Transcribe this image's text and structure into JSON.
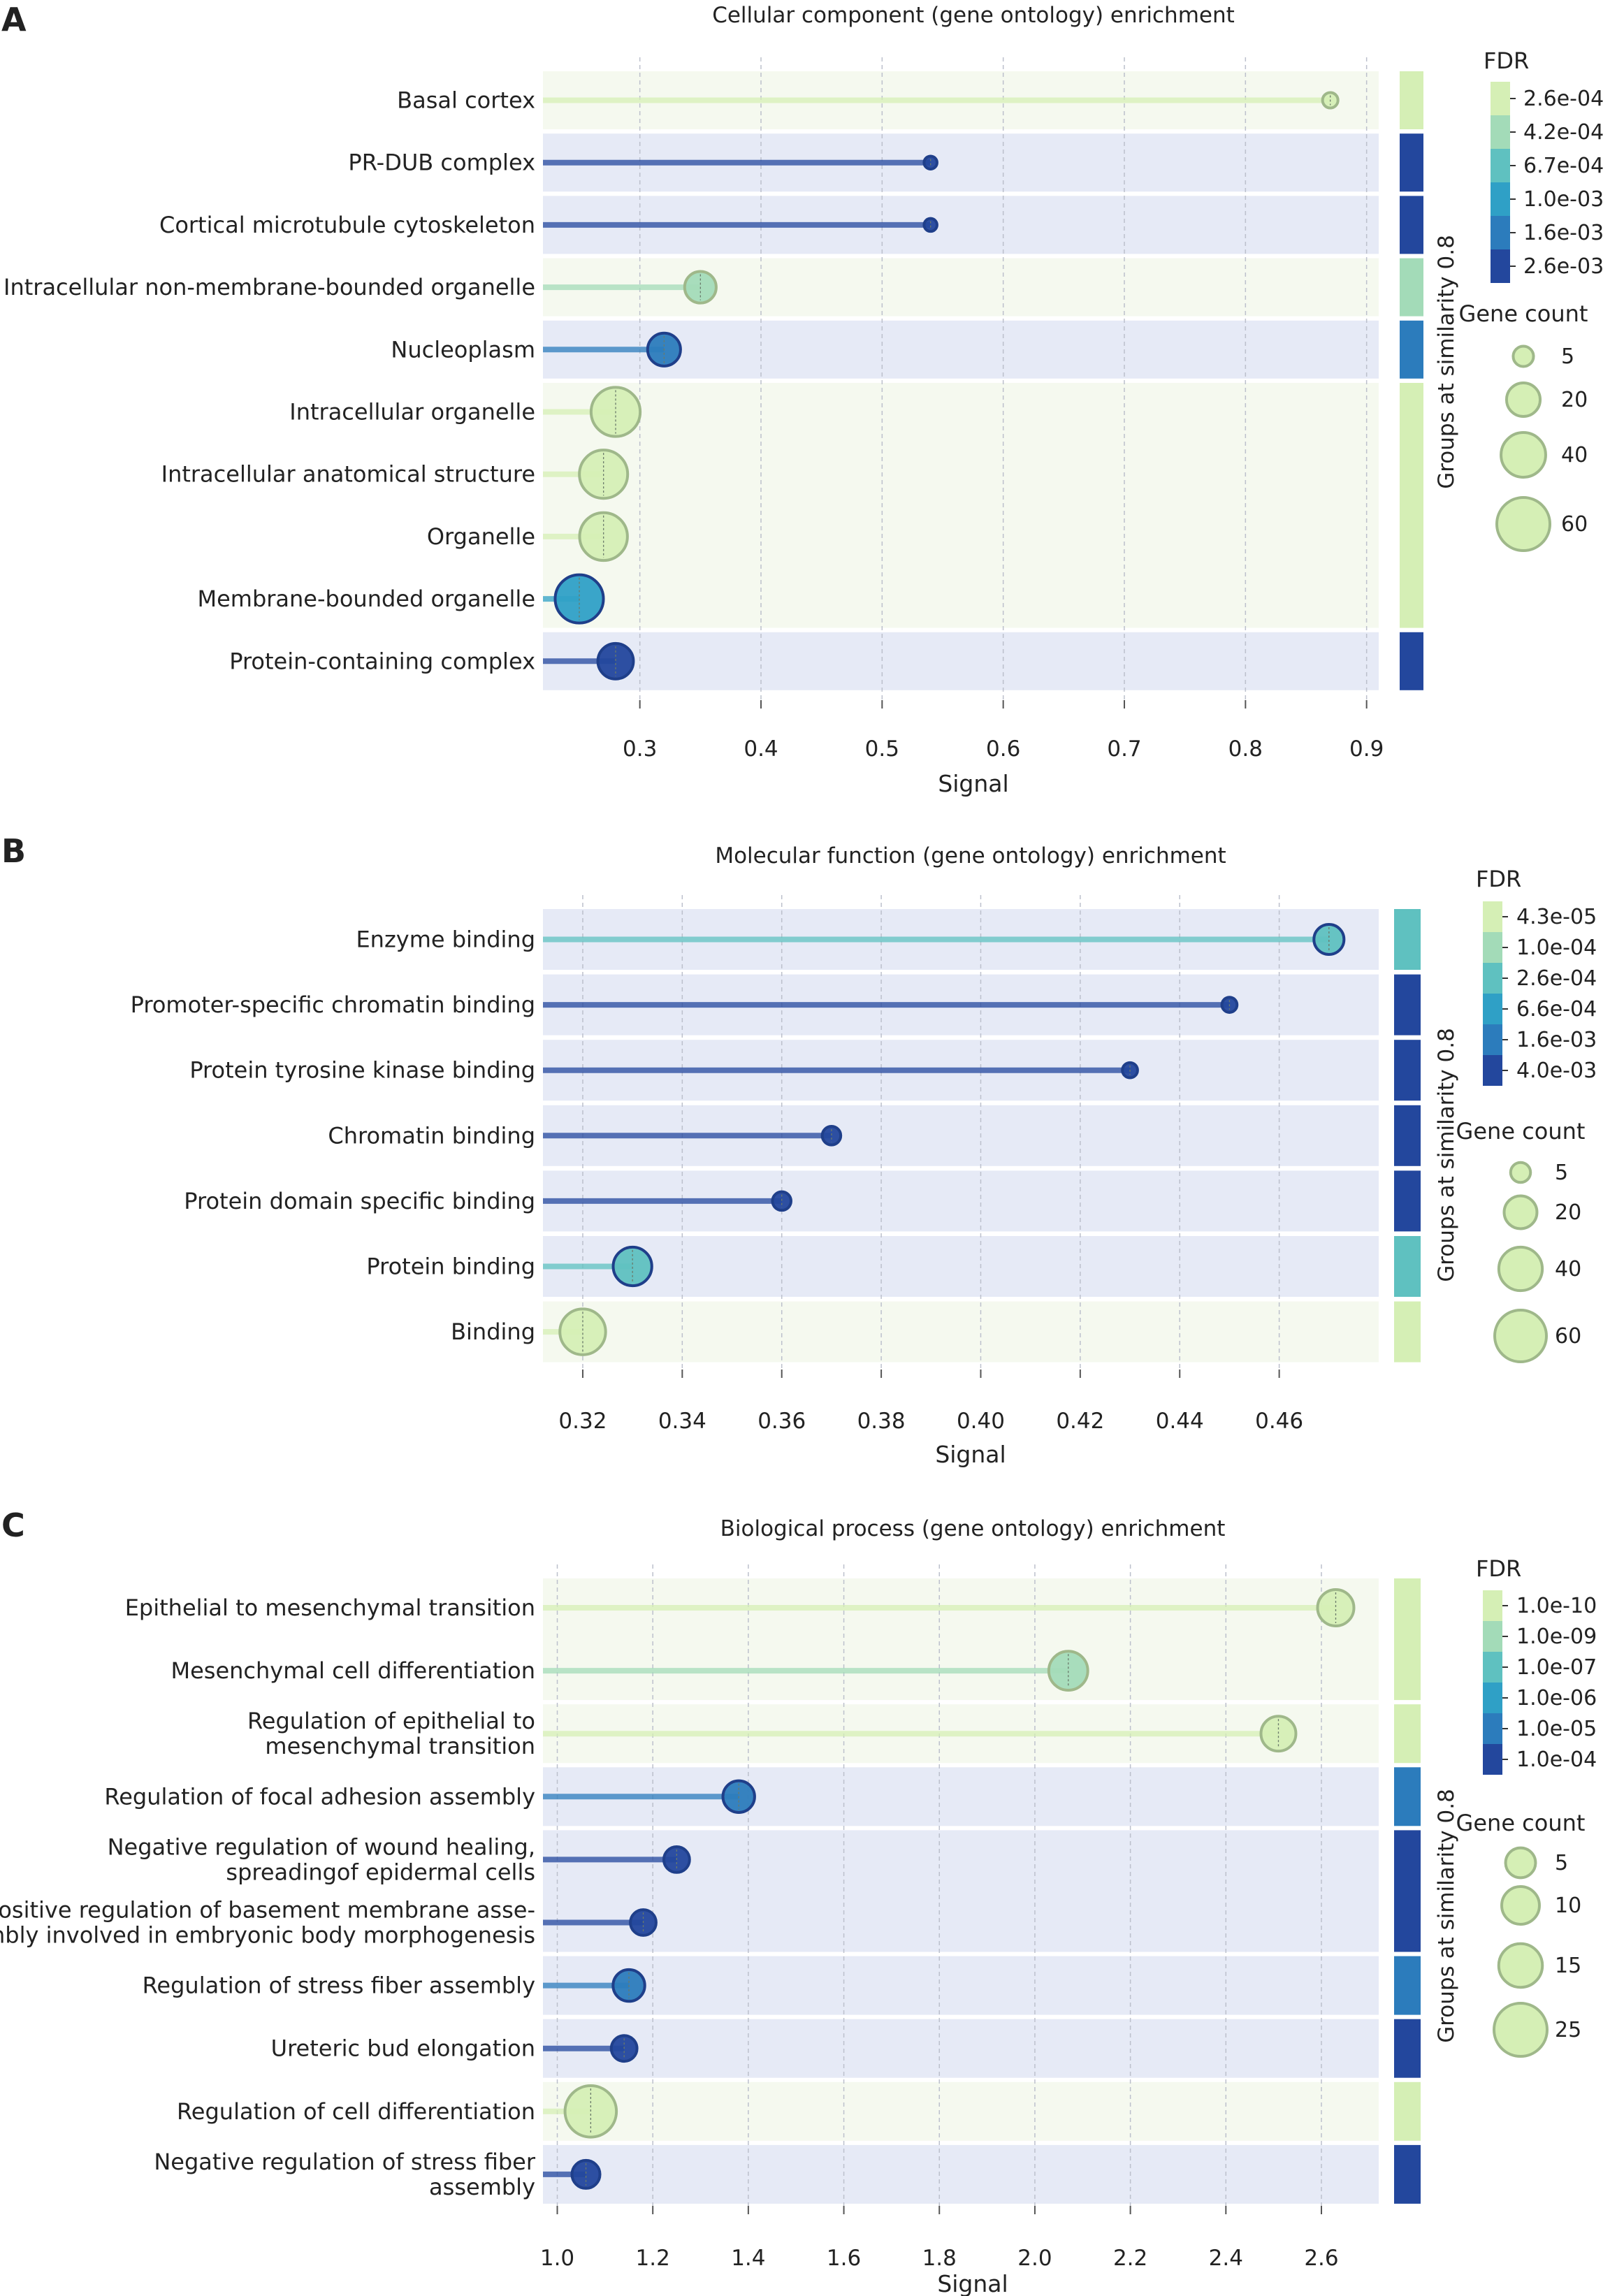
{
  "figure": {
    "panels": [
      {
        "letter": "A",
        "title": "Cellular component (gene ontology) enrichment",
        "xlabel": "Signal",
        "group_label": "Groups at similarity 0.8"
      },
      {
        "letter": "B",
        "title": "Molecular function (gene ontology) enrichment",
        "xlabel": "Signal",
        "group_label": "Groups at similarity 0.8"
      },
      {
        "letter": "C",
        "title": "Biological process (gene ontology) enrichment",
        "xlabel": "Signal",
        "group_label": "Groups at similarity 0.8"
      }
    ]
  },
  "colors": {
    "fdr_scale": [
      "#d5efb5",
      "#a3dbb8",
      "#5fc1c0",
      "#2fa0c6",
      "#2c7cbc",
      "#23479d"
    ],
    "band_light": "#f5f9ef",
    "band_dark": "#e6eaf6",
    "grid": "#bcc0cc"
  },
  "chart_data": [
    {
      "type": "lollipop",
      "title": "Cellular component (gene ontology) enrichment",
      "xlabel": "Signal",
      "xlim": [
        0.22,
        0.91
      ],
      "xticks": [
        0.3,
        0.4,
        0.5,
        0.6,
        0.7,
        0.8,
        0.9
      ],
      "tick_labels": [
        "0.3",
        "0.4",
        "0.5",
        "0.6",
        "0.7",
        "0.8",
        "0.9"
      ],
      "categories": [
        "Basal cortex",
        "PR-DUB complex",
        "Cortical microtubule cytoskeleton",
        "Intracellular non-membrane-bounded organelle",
        "Nucleoplasm",
        "Intracellular organelle",
        "Intracellular anatomical structure",
        "Organelle",
        "Membrane-bounded organelle",
        "Protein-containing complex"
      ],
      "signal": [
        0.87,
        0.54,
        0.54,
        0.35,
        0.32,
        0.28,
        0.27,
        0.27,
        0.25,
        0.28
      ],
      "gene_count": [
        2,
        1,
        1,
        17,
        19,
        50,
        48,
        47,
        48,
        23
      ],
      "fdr_level": [
        0,
        5,
        5,
        1,
        4,
        0,
        0,
        0,
        3,
        5
      ],
      "groups": [
        [
          0,
          0,
          0
        ],
        [
          1,
          1,
          5
        ],
        [
          2,
          2,
          5
        ],
        [
          3,
          3,
          1
        ],
        [
          4,
          4,
          4
        ],
        [
          5,
          8,
          0
        ],
        [
          9,
          9,
          5
        ]
      ],
      "legend_fdr_title": "FDR",
      "legend_fdr": [
        "2.6e-04",
        "4.2e-04",
        "6.7e-04",
        "1.0e-03",
        "1.6e-03",
        "2.6e-03"
      ],
      "legend_size_title": "Gene count",
      "legend_size": [
        5,
        20,
        40,
        60
      ]
    },
    {
      "type": "lollipop",
      "title": "Molecular function (gene ontology) enrichment",
      "xlabel": "Signal",
      "xlim": [
        0.312,
        0.48
      ],
      "xticks": [
        0.32,
        0.34,
        0.36,
        0.38,
        0.4,
        0.42,
        0.44,
        0.46
      ],
      "tick_labels": [
        "0.32",
        "0.34",
        "0.36",
        "0.38",
        "0.40",
        "0.42",
        "0.44",
        "0.46"
      ],
      "categories": [
        "Enzyme binding",
        "Promoter-specific chromatin binding",
        "Protein tyrosine kinase binding",
        "Chromatin binding",
        "Protein domain specific binding",
        "Protein binding",
        "Binding"
      ],
      "signal": [
        0.47,
        0.45,
        0.43,
        0.37,
        0.36,
        0.33,
        0.32
      ],
      "gene_count": [
        16,
        2,
        2,
        4,
        4,
        30,
        45
      ],
      "fdr_level": [
        2,
        5,
        5,
        5,
        5,
        2,
        0
      ],
      "groups": [
        [
          0,
          0,
          2
        ],
        [
          1,
          1,
          5
        ],
        [
          2,
          2,
          5
        ],
        [
          3,
          3,
          5
        ],
        [
          4,
          4,
          5
        ],
        [
          5,
          5,
          2
        ],
        [
          6,
          6,
          0
        ]
      ],
      "legend_fdr_title": "FDR",
      "legend_fdr": [
        "4.3e-05",
        "1.0e-04",
        "2.6e-04",
        "6.6e-04",
        "1.6e-03",
        "4.0e-03"
      ],
      "legend_size_title": "Gene count",
      "legend_size": [
        5,
        20,
        40,
        60
      ]
    },
    {
      "type": "lollipop",
      "title": "Biological process (gene ontology) enrichment",
      "xlabel": "Signal",
      "xlim": [
        0.97,
        2.72
      ],
      "xticks": [
        1.0,
        1.2,
        1.4,
        1.6,
        1.8,
        2.0,
        2.2,
        2.4,
        2.6
      ],
      "tick_labels": [
        "1.0",
        "1.2",
        "1.4",
        "1.6",
        "1.8",
        "2.0",
        "2.2",
        "2.4",
        "2.6"
      ],
      "categories": [
        [
          "Epithelial to mesenchymal transition"
        ],
        [
          "Mesenchymal cell differentiation"
        ],
        [
          "Regulation of epithelial to",
          "mesenchymal transition"
        ],
        [
          "Regulation of focal adhesion assembly"
        ],
        [
          "Negative regulation of wound healing,",
          "spreadingof epidermal cells"
        ],
        [
          "Positive regulation of basement membrane asse-",
          "mbly involved in embryonic body morphogenesis"
        ],
        [
          "Regulation of stress fiber assembly"
        ],
        [
          "Ureteric bud elongation"
        ],
        [
          "Regulation of cell differentiation"
        ],
        [
          "Negative regulation of stress fiber",
          "assembly"
        ]
      ],
      "signal": [
        2.63,
        2.07,
        2.51,
        1.38,
        1.25,
        1.18,
        1.15,
        1.14,
        1.07,
        1.06
      ],
      "gene_count": [
        9,
        11,
        8,
        6,
        3,
        3,
        6,
        3,
        23,
        4
      ],
      "fdr_level": [
        0,
        1,
        0,
        4,
        5,
        5,
        4,
        5,
        0,
        5
      ],
      "groups": [
        [
          0,
          1,
          0
        ],
        [
          2,
          2,
          0
        ],
        [
          3,
          3,
          4
        ],
        [
          4,
          5,
          5
        ],
        [
          6,
          6,
          4
        ],
        [
          7,
          7,
          5
        ],
        [
          8,
          8,
          0
        ],
        [
          9,
          9,
          5
        ]
      ],
      "legend_fdr_title": "FDR",
      "legend_fdr": [
        "1.0e-10",
        "1.0e-09",
        "1.0e-07",
        "1.0e-06",
        "1.0e-05",
        "1.0e-04"
      ],
      "legend_size_title": "Gene count",
      "legend_size": [
        5,
        10,
        15,
        25
      ]
    }
  ]
}
